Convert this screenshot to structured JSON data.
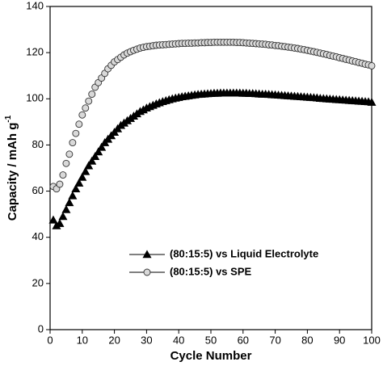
{
  "chart_data": {
    "type": "scatter",
    "xlabel": "Cycle Number",
    "ylabel": {
      "text": "Capacity / mAh g",
      "superscript": "-1"
    },
    "xlim": [
      0,
      100
    ],
    "xticks": [
      0,
      10,
      20,
      30,
      40,
      50,
      60,
      70,
      80,
      90,
      100
    ],
    "ylim": [
      0,
      140
    ],
    "yticks": [
      0,
      20,
      40,
      60,
      80,
      100,
      120,
      140
    ],
    "legend": "center-left",
    "x": [
      1,
      2,
      3,
      4,
      5,
      6,
      7,
      8,
      9,
      10,
      11,
      12,
      13,
      14,
      15,
      16,
      17,
      18,
      19,
      20,
      21,
      22,
      23,
      24,
      25,
      26,
      27,
      28,
      29,
      30,
      31,
      32,
      33,
      34,
      35,
      36,
      37,
      38,
      39,
      40,
      41,
      42,
      43,
      44,
      45,
      46,
      47,
      48,
      49,
      50,
      51,
      52,
      53,
      54,
      55,
      56,
      57,
      58,
      59,
      60,
      61,
      62,
      63,
      64,
      65,
      66,
      67,
      68,
      69,
      70,
      71,
      72,
      73,
      74,
      75,
      76,
      77,
      78,
      79,
      80,
      81,
      82,
      83,
      84,
      85,
      86,
      87,
      88,
      89,
      90,
      91,
      92,
      93,
      94,
      95,
      96,
      97,
      98,
      99,
      100
    ],
    "series": [
      {
        "name": "(80:15:5) vs Liquid Electrolyte",
        "marker": "triangle",
        "color": "#000000",
        "values": [
          47.5,
          45,
          46,
          49,
          52,
          55,
          58,
          61,
          63.5,
          66,
          68.5,
          71,
          73,
          75,
          77,
          79,
          81,
          82.5,
          84,
          85.5,
          87,
          88.5,
          89.5,
          90.5,
          91.5,
          92.5,
          93.5,
          94.5,
          95.2,
          96,
          96.6,
          97.2,
          97.8,
          98.3,
          98.8,
          99.2,
          99.6,
          100,
          100.3,
          100.6,
          100.9,
          101.1,
          101.3,
          101.5,
          101.7,
          101.9,
          102,
          102.1,
          102.2,
          102.3,
          102.4,
          102.4,
          102.5,
          102.5,
          102.5,
          102.5,
          102.5,
          102.5,
          102.5,
          102.4,
          102.4,
          102.3,
          102.3,
          102.2,
          102.1,
          102,
          102,
          101.9,
          101.8,
          101.7,
          101.6,
          101.5,
          101.4,
          101.3,
          101.2,
          101.1,
          101,
          100.9,
          100.8,
          100.7,
          100.6,
          100.5,
          100.4,
          100.2,
          100.1,
          100,
          99.9,
          99.8,
          99.7,
          99.6,
          99.5,
          99.4,
          99.3,
          99.2,
          99.1,
          99,
          98.9,
          98.8,
          98.7,
          98.5
        ]
      },
      {
        "name": "(80:15:5) vs SPE",
        "marker": "circle",
        "color": "#d9d9d9",
        "values": [
          62,
          61,
          63,
          67,
          72,
          76,
          81,
          85,
          89,
          93,
          96,
          99,
          102,
          105,
          107,
          109,
          111,
          113,
          114.5,
          116,
          117,
          118,
          119,
          119.8,
          120.4,
          121,
          121.5,
          122,
          122.3,
          122.6,
          122.8,
          123,
          123.2,
          123.3,
          123.4,
          123.5,
          123.6,
          123.7,
          123.8,
          123.9,
          124,
          124,
          124.1,
          124.1,
          124.2,
          124.2,
          124.3,
          124.3,
          124.4,
          124.4,
          124.5,
          124.5,
          124.5,
          124.5,
          124.5,
          124.5,
          124.5,
          124.4,
          124.4,
          124.3,
          124.2,
          124.1,
          124,
          123.9,
          123.8,
          123.7,
          123.6,
          123.4,
          123.3,
          123.1,
          123,
          122.8,
          122.6,
          122.4,
          122.2,
          122,
          121.8,
          121.5,
          121.3,
          121,
          120.7,
          120.4,
          120.1,
          119.8,
          119.5,
          119.2,
          118.8,
          118.5,
          118.2,
          117.8,
          117.5,
          117.1,
          116.8,
          116.4,
          116.1,
          115.7,
          115.4,
          115,
          114.7,
          114.3
        ]
      }
    ]
  }
}
